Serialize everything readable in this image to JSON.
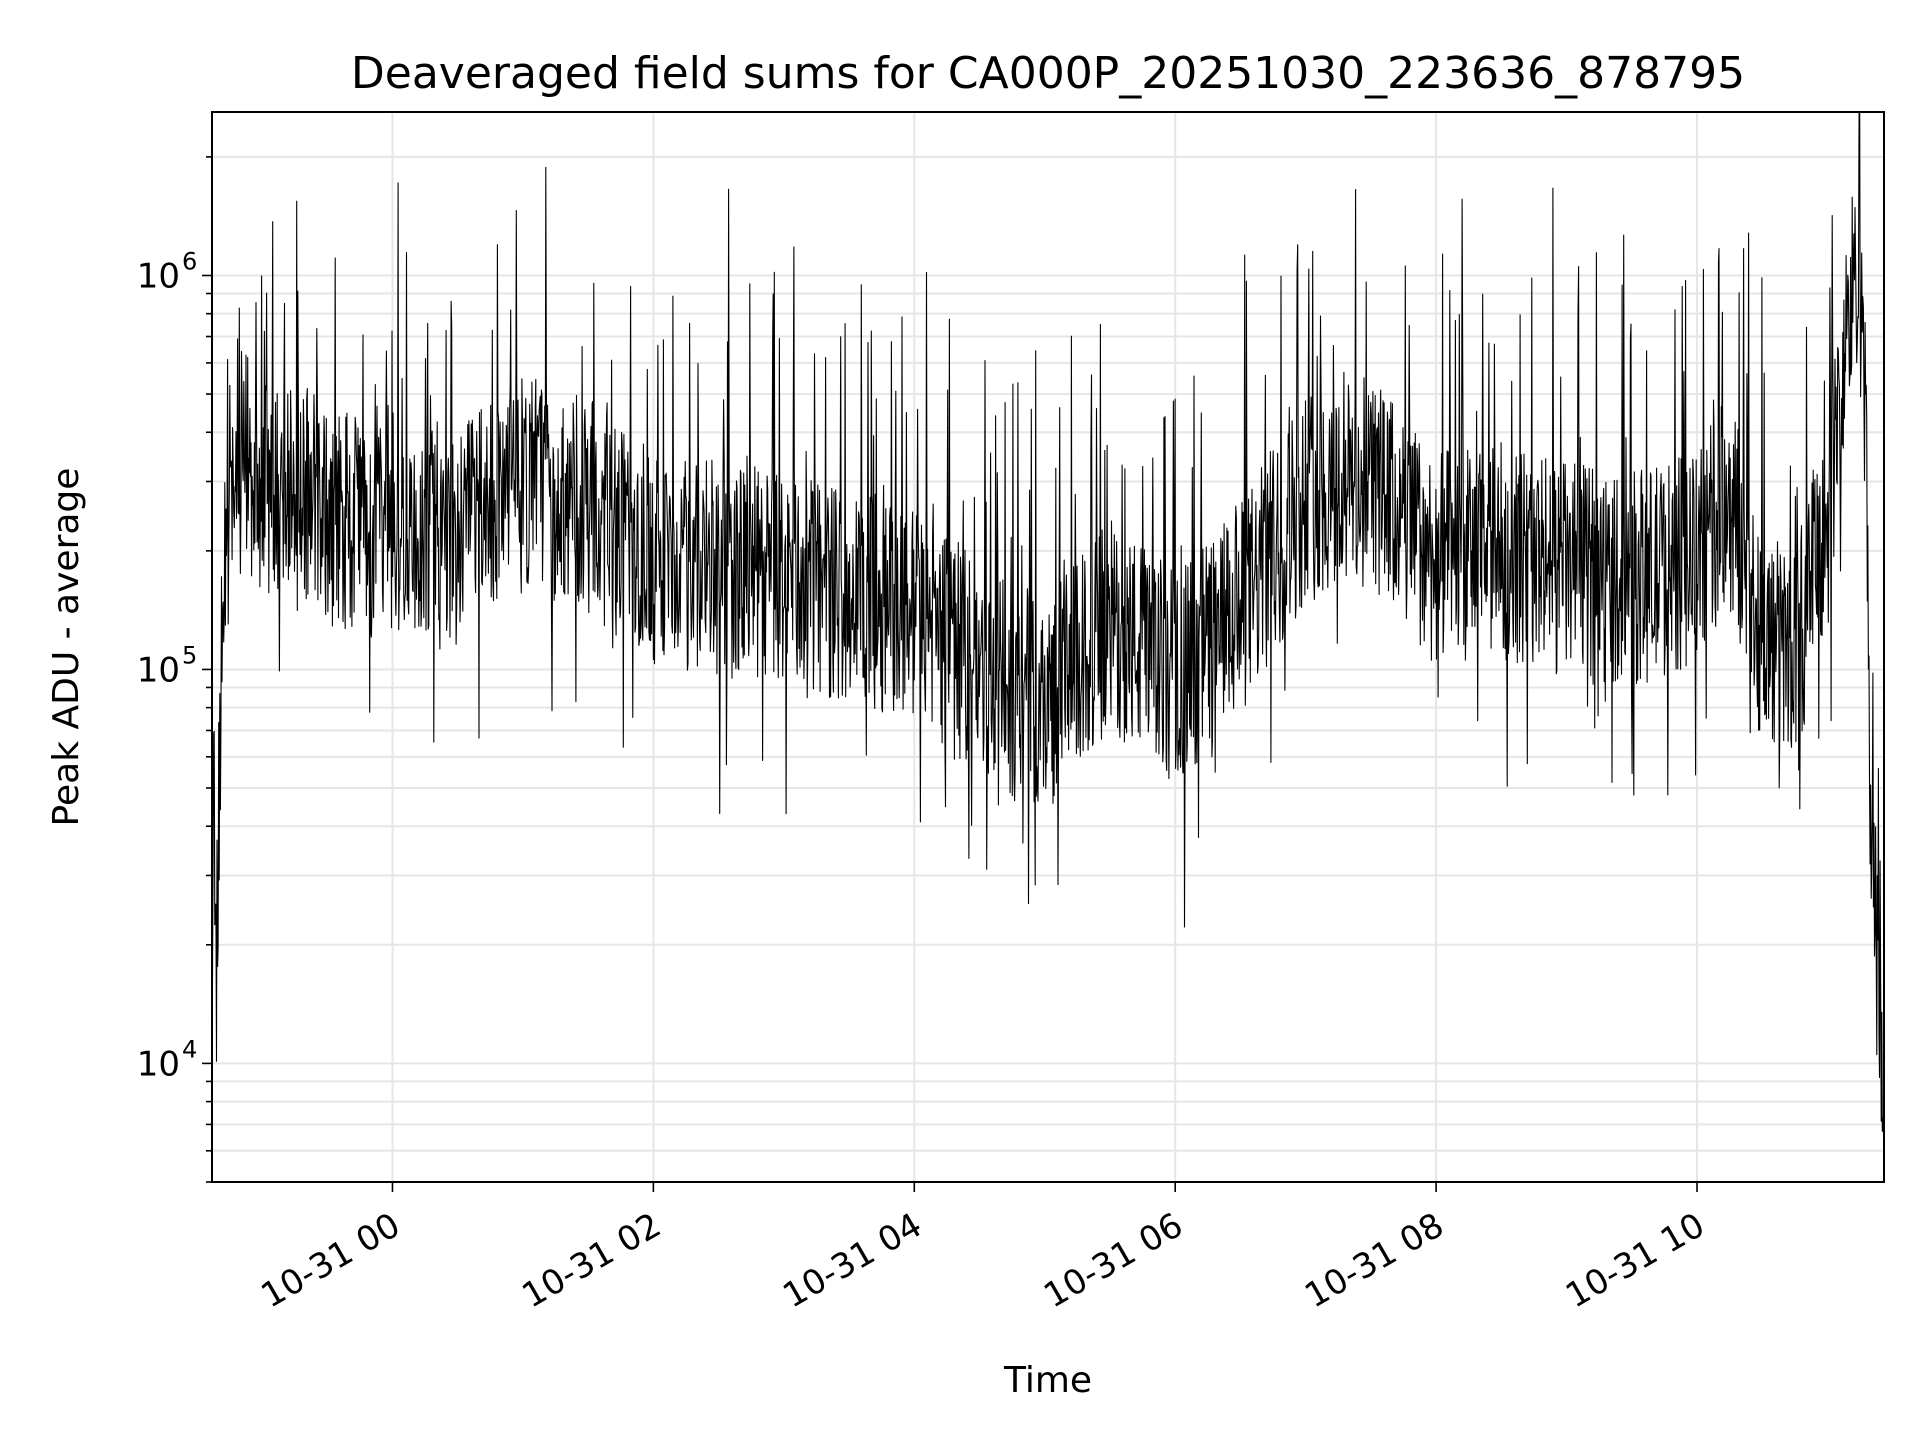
{
  "chart_data": {
    "type": "line",
    "title": "Deaveraged field sums for CA000P_20251030_223636_878795",
    "xlabel": "Time",
    "ylabel": "Peak ADU - average",
    "y_scale": "log",
    "ylim": [
      5000,
      2600000
    ],
    "xlim": [
      "2025-10-30 22:37",
      "2025-10-31 11:26"
    ],
    "grid": "on",
    "line_color": "#000000",
    "x_ticks": [
      {
        "value": "2025-10-31 00:00",
        "label": "10-31 00"
      },
      {
        "value": "2025-10-31 02:00",
        "label": "10-31 02"
      },
      {
        "value": "2025-10-31 04:00",
        "label": "10-31 04"
      },
      {
        "value": "2025-10-31 06:00",
        "label": "10-31 06"
      },
      {
        "value": "2025-10-31 08:00",
        "label": "10-31 08"
      },
      {
        "value": "2025-10-31 10:00",
        "label": "10-31 10"
      }
    ],
    "y_ticks": [
      {
        "value": 10000,
        "base": "10",
        "exp": "4"
      },
      {
        "value": 100000,
        "base": "10",
        "exp": "5"
      },
      {
        "value": 1000000,
        "base": "10",
        "exp": "6"
      }
    ],
    "series": [
      {
        "x": [
          "2025-10-30 22:37",
          "2025-10-30 22:38",
          "2025-10-30 22:39",
          "2025-10-30 22:41",
          "2025-10-30 22:45",
          "2025-10-30 22:50",
          "2025-10-30 23:00",
          "2025-10-30 23:15",
          "2025-10-30 23:30",
          "2025-10-30 23:45",
          "2025-10-31 00:00",
          "2025-10-31 00:30",
          "2025-10-31 01:00",
          "2025-10-31 01:30",
          "2025-10-31 02:00",
          "2025-10-31 03:00",
          "2025-10-31 04:00",
          "2025-10-31 04:40",
          "2025-10-31 05:00",
          "2025-10-31 05:30",
          "2025-10-31 06:00",
          "2025-10-31 06:30",
          "2025-10-31 07:00",
          "2025-10-31 07:30",
          "2025-10-31 08:00",
          "2025-10-31 08:30",
          "2025-10-31 09:00",
          "2025-10-31 09:30",
          "2025-10-31 10:00",
          "2025-10-31 10:15",
          "2025-10-31 10:30",
          "2025-10-31 10:45",
          "2025-10-31 11:00",
          "2025-10-31 11:10",
          "2025-10-31 11:15",
          "2025-10-31 11:18",
          "2025-10-31 11:20",
          "2025-10-31 11:23",
          "2025-10-31 11:26"
        ],
        "y": [
          8000,
          60000,
          15000,
          90000,
          330000,
          380000,
          280000,
          300000,
          250000,
          230000,
          240000,
          220000,
          300000,
          260000,
          190000,
          170000,
          140000,
          90000,
          80000,
          130000,
          95000,
          140000,
          280000,
          300000,
          190000,
          200000,
          180000,
          170000,
          190000,
          280000,
          120000,
          110000,
          230000,
          800000,
          1200000,
          300000,
          30000,
          20000,
          7000
        ]
      }
    ]
  }
}
